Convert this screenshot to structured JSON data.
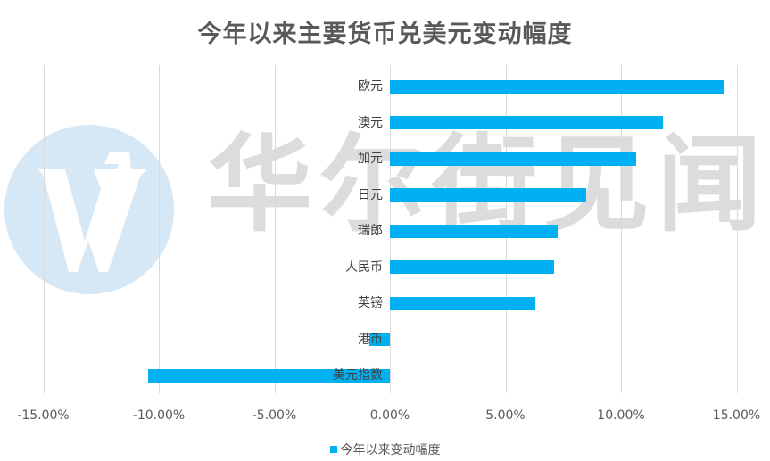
{
  "title": "今年以来主要货币兑美元变动幅度",
  "watermark": {
    "text": "华尔街见闻",
    "logo_icon": "wallstreetcn-w-logo-icon"
  },
  "legend": {
    "label": "今年以来变动幅度",
    "color": "#00b0f0"
  },
  "axis": {
    "ticks": [
      -15,
      -10,
      -5,
      0,
      5,
      10,
      15
    ],
    "tick_labels": [
      "-15.00%",
      "-10.00%",
      "-5.00%",
      "0.00%",
      "5.00%",
      "10.00%",
      "15.00%"
    ]
  },
  "chart_data": {
    "type": "bar",
    "orientation": "horizontal",
    "title": "今年以来主要货币兑美元变动幅度",
    "categories": [
      "欧元",
      "澳元",
      "加元",
      "日元",
      "瑞郎",
      "人民币",
      "英镑",
      "港币",
      "美元指数"
    ],
    "series": [
      {
        "name": "今年以来变动幅度",
        "color": "#00b0f0",
        "values": [
          14.43,
          11.8,
          10.64,
          8.51,
          7.26,
          7.09,
          6.29,
          -0.89,
          -10.46
        ]
      }
    ],
    "xlabel": "",
    "ylabel": "",
    "xlim": [
      -15,
      15
    ],
    "x_tick_labels": [
      "-15.00%",
      "-10.00%",
      "-5.00%",
      "0.00%",
      "5.00%",
      "10.00%",
      "15.00%"
    ],
    "value_format": "percent",
    "grid": "vertical",
    "legend_position": "bottom"
  }
}
